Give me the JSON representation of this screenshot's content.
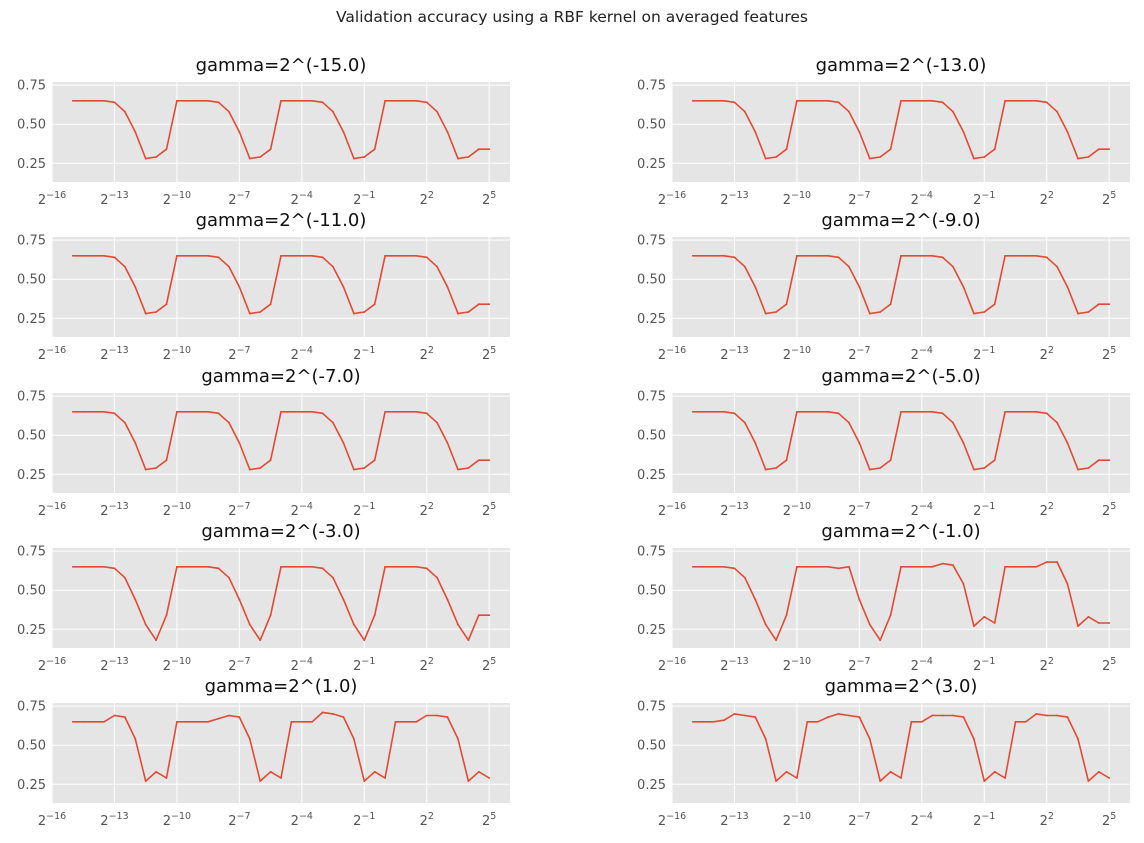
{
  "suptitle": "Validation accuracy using a RBF kernel on averaged features",
  "chart_data": {
    "type": "line",
    "layout": {
      "rows": 5,
      "cols": 2
    },
    "style": "ggplot",
    "grid": true,
    "colors": {
      "background": "#e5e5e5",
      "grid": "#ffffff",
      "line": "#e24a33",
      "tick_text": "#555555"
    },
    "xscale": "log2",
    "xlim_exp": [
      -16,
      6
    ],
    "xticks_exp": [
      -16,
      -13,
      -10,
      -7,
      -4,
      -1,
      2,
      5
    ],
    "xtick_labels": [
      "2^-16",
      "2^-13",
      "2^-10",
      "2^-7",
      "2^-4",
      "2^-1",
      "2^2",
      "2^5"
    ],
    "xtick_base": "2",
    "xtick_exponents": [
      "−16",
      "−13",
      "−10",
      "−7",
      "−4",
      "−1",
      "2",
      "5"
    ],
    "ylim": [
      0.13,
      0.77
    ],
    "yticks": [
      0.25,
      0.5,
      0.75
    ],
    "ytick_labels": [
      "0.25",
      "0.50",
      "0.75"
    ],
    "x_exp": [
      -15,
      -14.5,
      -14,
      -13.5,
      -13,
      -12.5,
      -12,
      -11.5,
      -11,
      -10.5,
      -10,
      -9.5,
      -9,
      -8.5,
      -8,
      -7.5,
      -7,
      -6.5,
      -6,
      -5.5,
      -5,
      -4.5,
      -4,
      -3.5,
      -3,
      -2.5,
      -2,
      -1.5,
      -1,
      -0.5,
      0,
      0.5,
      1,
      1.5,
      2,
      2.5,
      3,
      3.5,
      4,
      4.5,
      5
    ],
    "panels": [
      {
        "title": "gamma=2^(-15.0)",
        "values": [
          0.65,
          0.65,
          0.65,
          0.65,
          0.64,
          0.58,
          0.45,
          0.28,
          0.29,
          0.34,
          0.65,
          0.65,
          0.65,
          0.65,
          0.64,
          0.58,
          0.45,
          0.28,
          0.29,
          0.34,
          0.65,
          0.65,
          0.65,
          0.65,
          0.64,
          0.58,
          0.45,
          0.28,
          0.29,
          0.34,
          0.65,
          0.65,
          0.65,
          0.65,
          0.64,
          0.58,
          0.45,
          0.28,
          0.29,
          0.34,
          0.34
        ]
      },
      {
        "title": "gamma=2^(-13.0)",
        "values": [
          0.65,
          0.65,
          0.65,
          0.65,
          0.64,
          0.58,
          0.45,
          0.28,
          0.29,
          0.34,
          0.65,
          0.65,
          0.65,
          0.65,
          0.64,
          0.58,
          0.45,
          0.28,
          0.29,
          0.34,
          0.65,
          0.65,
          0.65,
          0.65,
          0.64,
          0.58,
          0.45,
          0.28,
          0.29,
          0.34,
          0.65,
          0.65,
          0.65,
          0.65,
          0.64,
          0.58,
          0.45,
          0.28,
          0.29,
          0.34,
          0.34
        ]
      },
      {
        "title": "gamma=2^(-11.0)",
        "values": [
          0.65,
          0.65,
          0.65,
          0.65,
          0.64,
          0.58,
          0.45,
          0.28,
          0.29,
          0.34,
          0.65,
          0.65,
          0.65,
          0.65,
          0.64,
          0.58,
          0.45,
          0.28,
          0.29,
          0.34,
          0.65,
          0.65,
          0.65,
          0.65,
          0.64,
          0.58,
          0.45,
          0.28,
          0.29,
          0.34,
          0.65,
          0.65,
          0.65,
          0.65,
          0.64,
          0.58,
          0.45,
          0.28,
          0.29,
          0.34,
          0.34
        ]
      },
      {
        "title": "gamma=2^(-9.0)",
        "values": [
          0.65,
          0.65,
          0.65,
          0.65,
          0.64,
          0.58,
          0.45,
          0.28,
          0.29,
          0.34,
          0.65,
          0.65,
          0.65,
          0.65,
          0.64,
          0.58,
          0.45,
          0.28,
          0.29,
          0.34,
          0.65,
          0.65,
          0.65,
          0.65,
          0.64,
          0.58,
          0.45,
          0.28,
          0.29,
          0.34,
          0.65,
          0.65,
          0.65,
          0.65,
          0.64,
          0.58,
          0.45,
          0.28,
          0.29,
          0.34,
          0.34
        ]
      },
      {
        "title": "gamma=2^(-7.0)",
        "values": [
          0.65,
          0.65,
          0.65,
          0.65,
          0.64,
          0.58,
          0.45,
          0.28,
          0.29,
          0.34,
          0.65,
          0.65,
          0.65,
          0.65,
          0.64,
          0.58,
          0.45,
          0.28,
          0.29,
          0.34,
          0.65,
          0.65,
          0.65,
          0.65,
          0.64,
          0.58,
          0.45,
          0.28,
          0.29,
          0.34,
          0.65,
          0.65,
          0.65,
          0.65,
          0.64,
          0.58,
          0.45,
          0.28,
          0.29,
          0.34,
          0.34
        ]
      },
      {
        "title": "gamma=2^(-5.0)",
        "values": [
          0.65,
          0.65,
          0.65,
          0.65,
          0.64,
          0.58,
          0.45,
          0.28,
          0.29,
          0.34,
          0.65,
          0.65,
          0.65,
          0.65,
          0.64,
          0.58,
          0.45,
          0.28,
          0.29,
          0.34,
          0.65,
          0.65,
          0.65,
          0.65,
          0.64,
          0.58,
          0.45,
          0.28,
          0.29,
          0.34,
          0.65,
          0.65,
          0.65,
          0.65,
          0.64,
          0.58,
          0.45,
          0.28,
          0.29,
          0.34,
          0.34
        ]
      },
      {
        "title": "gamma=2^(-3.0)",
        "values": [
          0.65,
          0.65,
          0.65,
          0.65,
          0.64,
          0.58,
          0.44,
          0.28,
          0.18,
          0.34,
          0.65,
          0.65,
          0.65,
          0.65,
          0.64,
          0.58,
          0.44,
          0.28,
          0.18,
          0.34,
          0.65,
          0.65,
          0.65,
          0.65,
          0.64,
          0.58,
          0.44,
          0.28,
          0.18,
          0.34,
          0.65,
          0.65,
          0.65,
          0.65,
          0.64,
          0.58,
          0.44,
          0.28,
          0.18,
          0.34,
          0.34
        ]
      },
      {
        "title": "gamma=2^(-1.0)",
        "values": [
          0.65,
          0.65,
          0.65,
          0.65,
          0.64,
          0.58,
          0.44,
          0.28,
          0.18,
          0.34,
          0.65,
          0.65,
          0.65,
          0.65,
          0.64,
          0.65,
          0.44,
          0.28,
          0.18,
          0.34,
          0.65,
          0.65,
          0.65,
          0.65,
          0.67,
          0.66,
          0.54,
          0.27,
          0.33,
          0.29,
          0.65,
          0.65,
          0.65,
          0.65,
          0.68,
          0.68,
          0.54,
          0.27,
          0.33,
          0.29,
          0.29
        ]
      },
      {
        "title": "gamma=2^(1.0)",
        "values": [
          0.65,
          0.65,
          0.65,
          0.65,
          0.69,
          0.68,
          0.54,
          0.27,
          0.33,
          0.29,
          0.65,
          0.65,
          0.65,
          0.65,
          0.67,
          0.69,
          0.68,
          0.54,
          0.27,
          0.33,
          0.29,
          0.65,
          0.65,
          0.65,
          0.71,
          0.7,
          0.68,
          0.54,
          0.27,
          0.33,
          0.29,
          0.65,
          0.65,
          0.65,
          0.69,
          0.69,
          0.68,
          0.54,
          0.27,
          0.33,
          0.29
        ]
      },
      {
        "title": "gamma=2^(3.0)",
        "values": [
          0.65,
          0.65,
          0.65,
          0.66,
          0.7,
          0.69,
          0.68,
          0.54,
          0.27,
          0.33,
          0.29,
          0.65,
          0.65,
          0.68,
          0.7,
          0.69,
          0.68,
          0.54,
          0.27,
          0.33,
          0.29,
          0.65,
          0.65,
          0.69,
          0.69,
          0.69,
          0.68,
          0.54,
          0.27,
          0.33,
          0.29,
          0.65,
          0.65,
          0.7,
          0.69,
          0.69,
          0.68,
          0.54,
          0.27,
          0.33,
          0.29
        ]
      }
    ]
  }
}
